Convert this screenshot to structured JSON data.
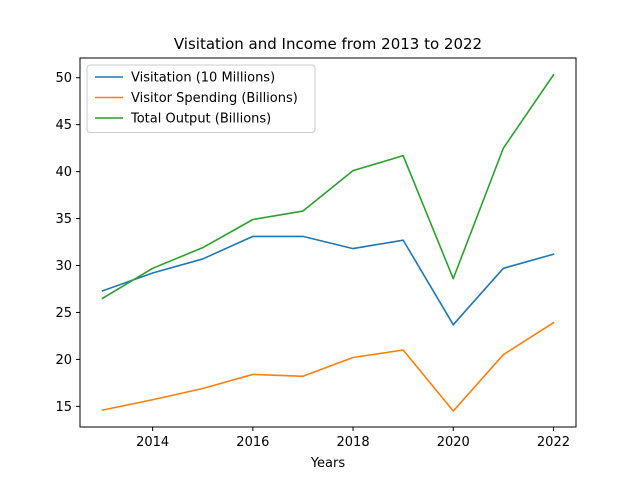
{
  "chart_data": {
    "type": "line",
    "title": "Visitation and Income from 2013 to 2022",
    "xlabel": "Years",
    "ylabel": "",
    "x": [
      2013,
      2014,
      2015,
      2016,
      2017,
      2018,
      2019,
      2020,
      2021,
      2022
    ],
    "xlim": [
      2012.55,
      2022.45
    ],
    "ylim": [
      12.8,
      52.1
    ],
    "xticks": [
      2014,
      2016,
      2018,
      2020,
      2022
    ],
    "yticks": [
      15,
      20,
      25,
      30,
      35,
      40,
      45,
      50
    ],
    "grid": false,
    "legend_position": "upper-left",
    "series": [
      {
        "name": "Visitation (10 Millions)",
        "color": "#1f77b4",
        "values": [
          27.3,
          29.2,
          30.7,
          33.1,
          33.1,
          31.8,
          32.7,
          23.7,
          29.7,
          31.2
        ]
      },
      {
        "name": "Visitor Spending (Billions)",
        "color": "#ff7f0e",
        "values": [
          14.6,
          15.7,
          16.9,
          18.4,
          18.2,
          20.2,
          21.0,
          14.5,
          20.5,
          23.9
        ]
      },
      {
        "name": "Total Output (Billions)",
        "color": "#2ca02c",
        "values": [
          26.5,
          29.7,
          31.9,
          34.9,
          35.8,
          40.1,
          41.7,
          28.6,
          42.5,
          50.3
        ]
      }
    ]
  }
}
